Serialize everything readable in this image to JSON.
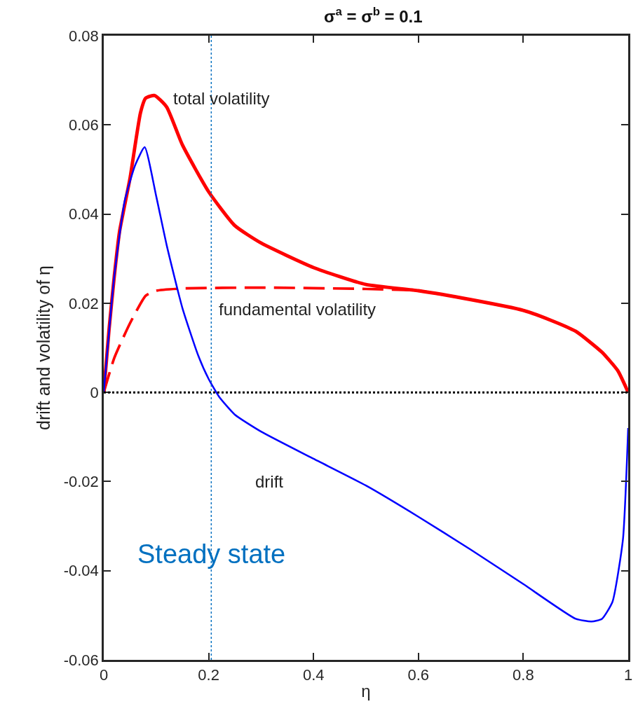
{
  "chart_data": {
    "type": "line",
    "title": "σ$^{a}$ = σ$^{b}$ = 0.1",
    "xlabel": "η",
    "ylabel": "drift and volatility of η",
    "xlim": [
      0,
      1
    ],
    "xticks": [
      0,
      0.2,
      0.4,
      0.6,
      0.8,
      1
    ],
    "ylim": [
      -0.06,
      0.08
    ],
    "yticks": [
      -0.06,
      -0.04,
      -0.02,
      0,
      0.02,
      0.04,
      0.06,
      0.08
    ],
    "grid": false,
    "legend": false,
    "marker": "none",
    "series": [
      {
        "name": "total volatility",
        "color": "#ff0000",
        "line_style": "solid",
        "x": [
          0,
          0.01,
          0.02,
          0.03,
          0.05,
          0.07,
          0.08,
          0.097,
          0.12,
          0.15,
          0.2,
          0.25,
          0.3,
          0.4,
          0.5,
          0.6,
          0.7,
          0.8,
          0.85,
          0.9,
          0.95,
          0.98,
          1
        ],
        "values": [
          0,
          0.014,
          0.026,
          0.036,
          0.048,
          0.0627,
          0.066,
          0.0666,
          0.064,
          0.0555,
          0.045,
          0.0374,
          0.0335,
          0.028,
          0.0242,
          0.0228,
          0.0208,
          0.0184,
          0.0163,
          0.0137,
          0.009,
          0.0049,
          0
        ]
      },
      {
        "name": "fundamental volatility",
        "color": "#ff0000",
        "line_style": "dashed",
        "x": [
          0,
          0.02,
          0.05,
          0.08,
          0.1,
          0.15,
          0.3,
          0.5,
          0.6,
          0.7,
          0.8,
          0.85,
          0.9,
          0.95,
          0.98,
          1
        ],
        "values": [
          0,
          0.0077,
          0.0155,
          0.0217,
          0.0228,
          0.0233,
          0.0235,
          0.0232,
          0.0228,
          0.0208,
          0.0184,
          0.0163,
          0.0137,
          0.009,
          0.0049,
          0
        ]
      },
      {
        "name": "drift",
        "color": "#0000ff",
        "line_style": "solid",
        "x": [
          0,
          0.02,
          0.04,
          0.06,
          0.078,
          0.1,
          0.12,
          0.15,
          0.18,
          0.2,
          0.22,
          0.25,
          0.3,
          0.4,
          0.5,
          0.6,
          0.7,
          0.8,
          0.9,
          0.93,
          0.95,
          0.97,
          0.99,
          1
        ],
        "values": [
          0,
          0.026,
          0.043,
          0.051,
          0.055,
          0.044,
          0.033,
          0.0189,
          0.0083,
          0.003,
          -0.001,
          -0.005,
          -0.0088,
          -0.0149,
          -0.0209,
          -0.0279,
          -0.0353,
          -0.043,
          -0.0508,
          -0.0514,
          -0.0508,
          -0.047,
          -0.033,
          -0.008
        ]
      }
    ],
    "ref_lines": [
      {
        "axis": "y",
        "value": 0,
        "color": "#000000",
        "line_style": "dotted"
      },
      {
        "axis": "x",
        "value": 0.205,
        "label": "Steady state",
        "color": "#0070c0",
        "line_style": "dotted"
      }
    ]
  }
}
